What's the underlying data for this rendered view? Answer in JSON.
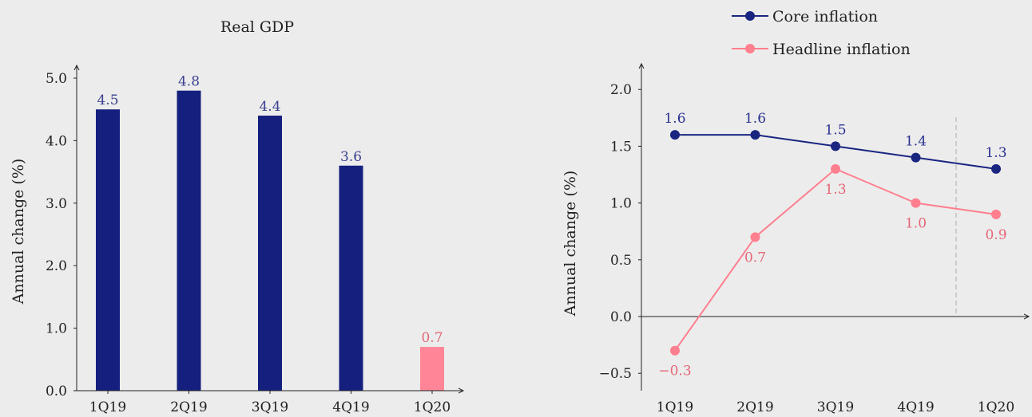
{
  "chart_data": [
    {
      "type": "bar",
      "title": "Real GDP",
      "ylabel": "Annual change (%)",
      "xlabel": "",
      "categories": [
        "1Q19",
        "2Q19",
        "3Q19",
        "4Q19",
        "1Q20"
      ],
      "values": [
        4.5,
        4.8,
        4.4,
        3.6,
        0.7
      ],
      "value_labels": [
        "4.5",
        "4.8",
        "4.4",
        "3.6",
        "0.7"
      ],
      "yticks": [
        0.0,
        1.0,
        2.0,
        3.0,
        4.0,
        5.0
      ],
      "ytick_labels": [
        "0.0",
        "1.0",
        "2.0",
        "3.0",
        "4.0",
        "5.0"
      ],
      "ylim": [
        0,
        5.4
      ],
      "bar_colors": [
        "#151f7e",
        "#151f7e",
        "#151f7e",
        "#151f7e",
        "#ff8597"
      ],
      "grid": false
    },
    {
      "type": "line",
      "title": "",
      "ylabel": "Annual change (%)",
      "xlabel": "",
      "categories": [
        "1Q19",
        "2Q19",
        "3Q19",
        "4Q19",
        "1Q20"
      ],
      "series": [
        {
          "name": "Core inflation",
          "color": "#1a2580",
          "values": [
            1.6,
            1.6,
            1.5,
            1.4,
            1.3
          ],
          "labels": [
            "1.6",
            "1.6",
            "1.5",
            "1.4",
            "1.3"
          ],
          "label_position": "above"
        },
        {
          "name": "Headline inflation",
          "color": "#ff7f8f",
          "values": [
            -0.3,
            0.7,
            1.3,
            1.0,
            0.9
          ],
          "labels": [
            "−0.3",
            "0.7",
            "1.3",
            "1.0",
            "0.9"
          ],
          "label_position": "below"
        }
      ],
      "yticks": [
        -0.5,
        0.0,
        0.5,
        1.0,
        1.5,
        2.0
      ],
      "ytick_labels": [
        "−0.5",
        "0.0",
        "0.5",
        "1.0",
        "1.5",
        "2.0"
      ],
      "ylim": [
        -0.65,
        2.2
      ],
      "vertical_reference_line": "between 4Q19 and 1Q20 (dashed)",
      "legend_position": "top",
      "grid": false
    }
  ]
}
